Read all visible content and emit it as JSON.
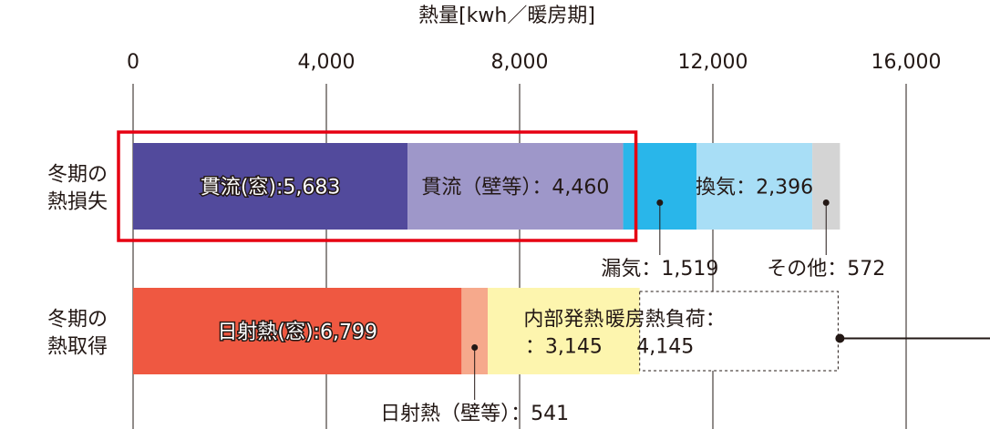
{
  "chart_data": {
    "type": "bar",
    "orientation": "horizontal",
    "stacked": true,
    "title": "熱量[kwh／暖房期]",
    "xlim": [
      0,
      16000
    ],
    "ticks": [
      {
        "value": 0,
        "label": "0"
      },
      {
        "value": 4000,
        "label": "4,000"
      },
      {
        "value": 8000,
        "label": "8,000"
      },
      {
        "value": 12000,
        "label": "12,000"
      },
      {
        "value": 16000,
        "label": "16,000"
      }
    ],
    "grid": true,
    "rows": [
      {
        "label_lines": [
          "冬期の",
          "熱損失"
        ],
        "segments": [
          {
            "name": "貫流(窓)",
            "value": 5683,
            "color": "#524a9c",
            "label": "貫流(窓):5,683",
            "label_style": "outlined"
          },
          {
            "name": "貫流(壁等)",
            "value": 4460,
            "color": "#9e97c9",
            "label": "貫流（壁等）：4,460",
            "label_style": "plain"
          },
          {
            "name": "漏気",
            "value": 1519,
            "color": "#29b6ea",
            "label": "漏気：1,519",
            "label_style": "callout"
          },
          {
            "name": "換気",
            "value": 2396,
            "color": "#a8def6",
            "label": "換気：2,396",
            "label_style": "plain"
          },
          {
            "name": "その他",
            "value": 572,
            "color": "#d4d4d4",
            "label": "その他：572",
            "label_style": "callout"
          }
        ]
      },
      {
        "label_lines": [
          "冬期の",
          "熱取得"
        ],
        "segments": [
          {
            "name": "日射熱(窓)",
            "value": 6799,
            "color": "#ef5841",
            "label": "日射熱(窓):6,799",
            "label_style": "outlined"
          },
          {
            "name": "日射熱(壁等)",
            "value": 541,
            "color": "#f6a98c",
            "label": "日射熱（壁等）：541",
            "label_style": "callout"
          },
          {
            "name": "内部発熱",
            "value": 3145,
            "color": "#fdf5ae",
            "label_lines": [
              "内部発熱",
              "：3,145"
            ],
            "label_style": "plain"
          },
          {
            "name": "暖房熱負荷",
            "value": 4145,
            "color": "#ffffff",
            "label_lines": [
              "暖房熱負荷：",
              "4,145"
            ],
            "label_style": "dashed"
          }
        ]
      }
    ],
    "highlight": {
      "row": 0,
      "segments": [
        "貫流(窓)",
        "貫流(壁等)"
      ],
      "color": "#e60012"
    }
  }
}
